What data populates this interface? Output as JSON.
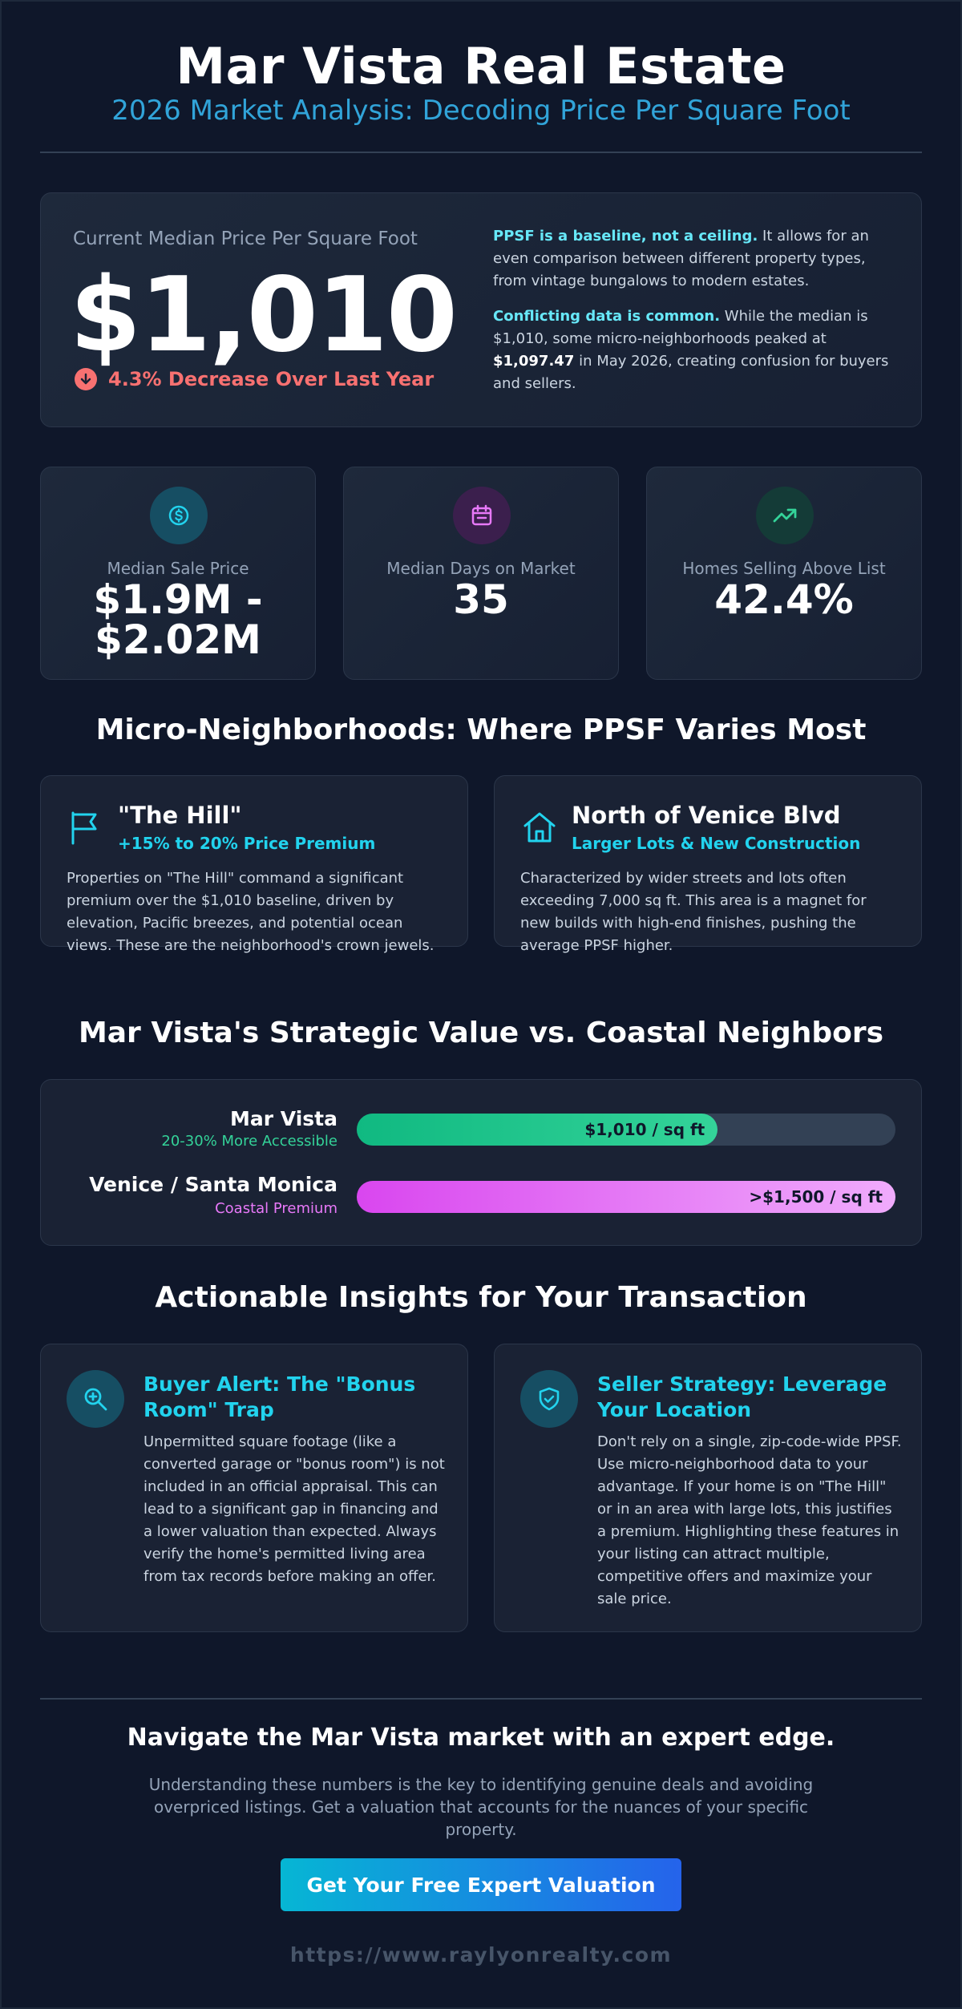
{
  "header": {
    "title": "Mar Vista Real Estate",
    "subtitle": "2026 Market Analysis: Decoding Price Per Square Foot"
  },
  "hero": {
    "label": "Current Median Price Per Square Foot",
    "price": "$1,010",
    "change": "4.3% Decrease Over Last Year",
    "note1_lead": "PPSF is a baseline, not a ceiling.",
    "note1_body": " It allows for an even comparison between different property types, from vintage bungalows to modern estates.",
    "note2_lead": "Conflicting data is common.",
    "note2_body_a": " While the median is $1,010, some micro-neighborhoods peaked at ",
    "note2_strong": "$1,097.47",
    "note2_body_b": " in May 2026, creating confusion for buyers and sellers."
  },
  "stats": [
    {
      "icon": "dollar-icon",
      "label": "Median Sale Price",
      "value": "$1.9M - $2.02M",
      "color": "#22d3ee"
    },
    {
      "icon": "calendar-icon",
      "label": "Median Days on Market",
      "value": "35",
      "color": "#e879f9"
    },
    {
      "icon": "trending-up-icon",
      "label": "Homes Selling Above List",
      "value": "42.4%",
      "color": "#34d399"
    }
  ],
  "micro": {
    "heading": "Micro-Neighborhoods: Where PPSF Varies Most",
    "cards": [
      {
        "icon": "flag-icon",
        "title": "\"The Hill\"",
        "subtitle": "+15% to 20% Price Premium",
        "body": "Properties on \"The Hill\" command a significant premium over the $1,010 baseline, driven by elevation, Pacific breezes, and potential ocean views. These are the neighborhood's crown jewels."
      },
      {
        "icon": "home-icon",
        "title": "North of Venice Blvd",
        "subtitle": "Larger Lots & New Construction",
        "body": "Characterized by wider streets and lots often exceeding 7,000 sq ft. This area is a magnet for new builds with high-end finishes, pushing the average PPSF higher."
      }
    ]
  },
  "comparison": {
    "heading": "Mar Vista's Strategic Value vs. Coastal Neighbors",
    "rows": [
      {
        "name": "Mar Vista",
        "note": "20-30% More Accessible",
        "bar_label": "$1,010 / sq ft",
        "fill_fraction": 0.67,
        "color": "#10b981"
      },
      {
        "name": "Venice / Santa Monica",
        "note": "Coastal Premium",
        "bar_label": ">$1,500 / sq ft",
        "fill_fraction": 1.0,
        "color": "#d946ef"
      }
    ]
  },
  "insights": {
    "heading": "Actionable Insights for Your Transaction",
    "cards": [
      {
        "icon": "search-plus-icon",
        "title": "Buyer Alert: The \"Bonus Room\" Trap",
        "body": "Unpermitted square footage (like a converted garage or \"bonus room\") is not included in an official appraisal. This can lead to a significant gap in financing and a lower valuation than expected. Always verify the home's permitted living area from tax records before making an offer."
      },
      {
        "icon": "shield-check-icon",
        "title": "Seller Strategy: Leverage Your Location",
        "body": "Don't rely on a single, zip-code-wide PPSF. Use micro-neighborhood data to your advantage. If your home is on \"The Hill\" or in an area with large lots, this justifies a premium. Highlighting these features in your listing can attract multiple, competitive offers and maximize your sale price."
      }
    ]
  },
  "footer": {
    "heading": "Navigate the Mar Vista market with an expert edge.",
    "body": "Understanding these numbers is the key to identifying genuine deals and avoiding overpriced listings. Get a valuation that accounts for the nuances of your specific property.",
    "button": "Get Your Free Expert Valuation",
    "url": "https://www.raylyonrealty.com"
  }
}
